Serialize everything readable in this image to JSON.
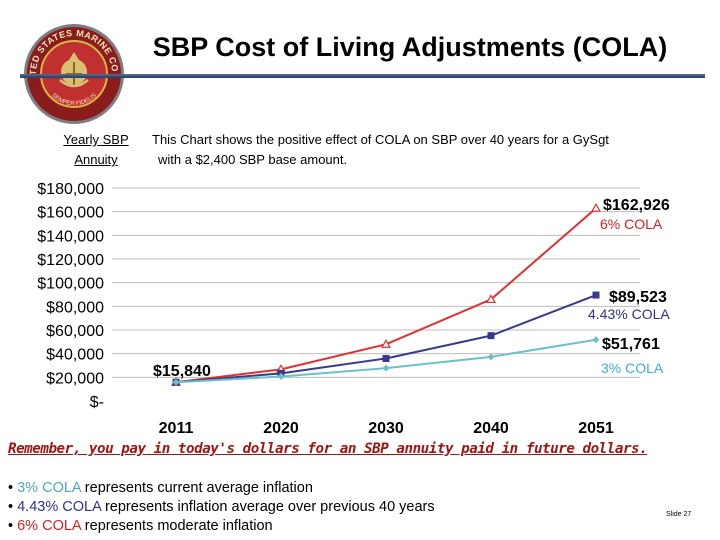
{
  "slide": {
    "title": "SBP Cost of Living Adjustments (COLA)",
    "seal_text_top": "UNITED STATES MARINE CORPS",
    "seal_text_bottom": "SEMPER FIDELIS",
    "y_axis_label_line1": "Yearly SBP",
    "y_axis_label_line2": "Annuity",
    "description_line1": "This Chart shows the positive effect of COLA on  SBP over 40 years for a GySgt",
    "description_line2": "with a $2,400 SBP base amount.",
    "reminder": "Remember, you pay in today's dollars for an SBP annuity paid in future dollars.",
    "bullets": [
      {
        "prefix": "• ",
        "highlight": "3% COLA",
        "rest": " represents current average inflation",
        "color": "#4aa8b4"
      },
      {
        "prefix": "• ",
        "highlight": "4.43% COLA",
        "rest": "  represents inflation average over previous 40 years",
        "color": "#2e3192"
      },
      {
        "prefix": "• ",
        "highlight": "6% COLA",
        "rest": " represents moderate inflation",
        "color": "#d92020"
      }
    ],
    "slide_number": "Slide 27"
  },
  "chart_data": {
    "type": "line",
    "categories": [
      "2011",
      "2020",
      "2030",
      "2040",
      "2051"
    ],
    "ylim": [
      0,
      180000
    ],
    "y_ticks": [
      0,
      20000,
      40000,
      60000,
      80000,
      100000,
      120000,
      140000,
      160000,
      180000
    ],
    "y_tick_labels": [
      "$-",
      "$20,000",
      "$40,000",
      "$60,000",
      "$80,000",
      "$100,000",
      "$120,000",
      "$140,000",
      "$160,000",
      "$180,000"
    ],
    "grid": true,
    "series": [
      {
        "name": "6% COLA",
        "color": "#e03030",
        "marker": "triangle",
        "values": [
          15840,
          26760,
          47930,
          85830,
          162926
        ]
      },
      {
        "name": "4.43% COLA",
        "color": "#3a3a8c",
        "marker": "square",
        "values": [
          15840,
          23370,
          35930,
          55230,
          89523
        ]
      },
      {
        "name": "3% COLA",
        "color": "#6cc0c8",
        "marker": "diamond",
        "values": [
          15840,
          20670,
          27770,
          37320,
          51761
        ]
      }
    ],
    "annotations": {
      "start_value": "$15,840",
      "end_values": [
        "$162,926",
        "$89,523",
        "$51,761"
      ],
      "series_labels": [
        "6% COLA",
        "4.43% COLA",
        "3% COLA"
      ],
      "label_colors": [
        "#d92020",
        "#2e3192",
        "#3aaed0"
      ]
    }
  }
}
